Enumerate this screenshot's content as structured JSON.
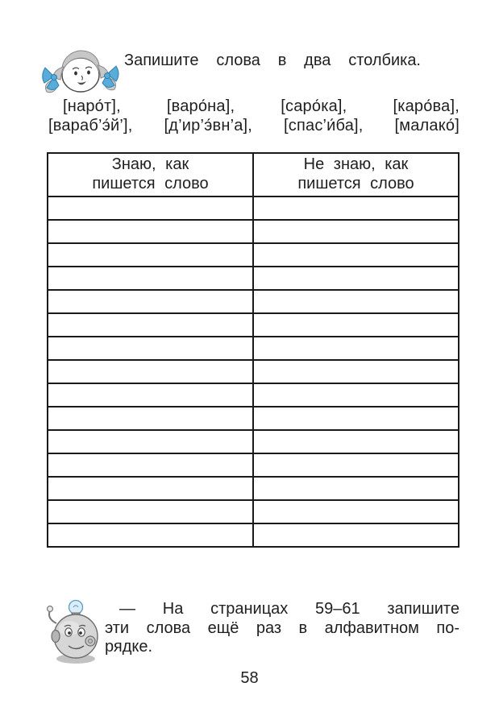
{
  "page": {
    "number": "58"
  },
  "exercise": {
    "instruction": "Запишите слова в два столбика.",
    "words_line1": "[наро́т], [варо́на], [саро́ка], [каро́ва],",
    "words_line2": "[вараб’э́й’], [д’ир’э́вн’а], [спас’и́ба], [малако́]"
  },
  "table": {
    "columns": [
      {
        "header_line1": "Знаю, как",
        "header_line2": "пишется слово"
      },
      {
        "header_line1": "Не знаю, как",
        "header_line2": "пишется слово"
      }
    ],
    "empty_rows": 15
  },
  "note": {
    "line1": "— На страницах 59–61 запишите",
    "line2": "эти слова ещё раз в алфавитном по-",
    "line3": "рядке."
  },
  "icons": {
    "girl": "girl-with-blue-bows-icon",
    "robot": "robot-with-lightbulb-icon"
  },
  "colors": {
    "text": "#1f1f1f",
    "table_border": "#1a1a1a",
    "bow_blue": "#57acd9",
    "bow_outline": "#2f7fae",
    "hair_gray": "#c7c7c7",
    "robot_gray": "#d6d6d6",
    "bulb_blue": "#dcedf7",
    "shadow_gray": "#c2c2c2"
  }
}
